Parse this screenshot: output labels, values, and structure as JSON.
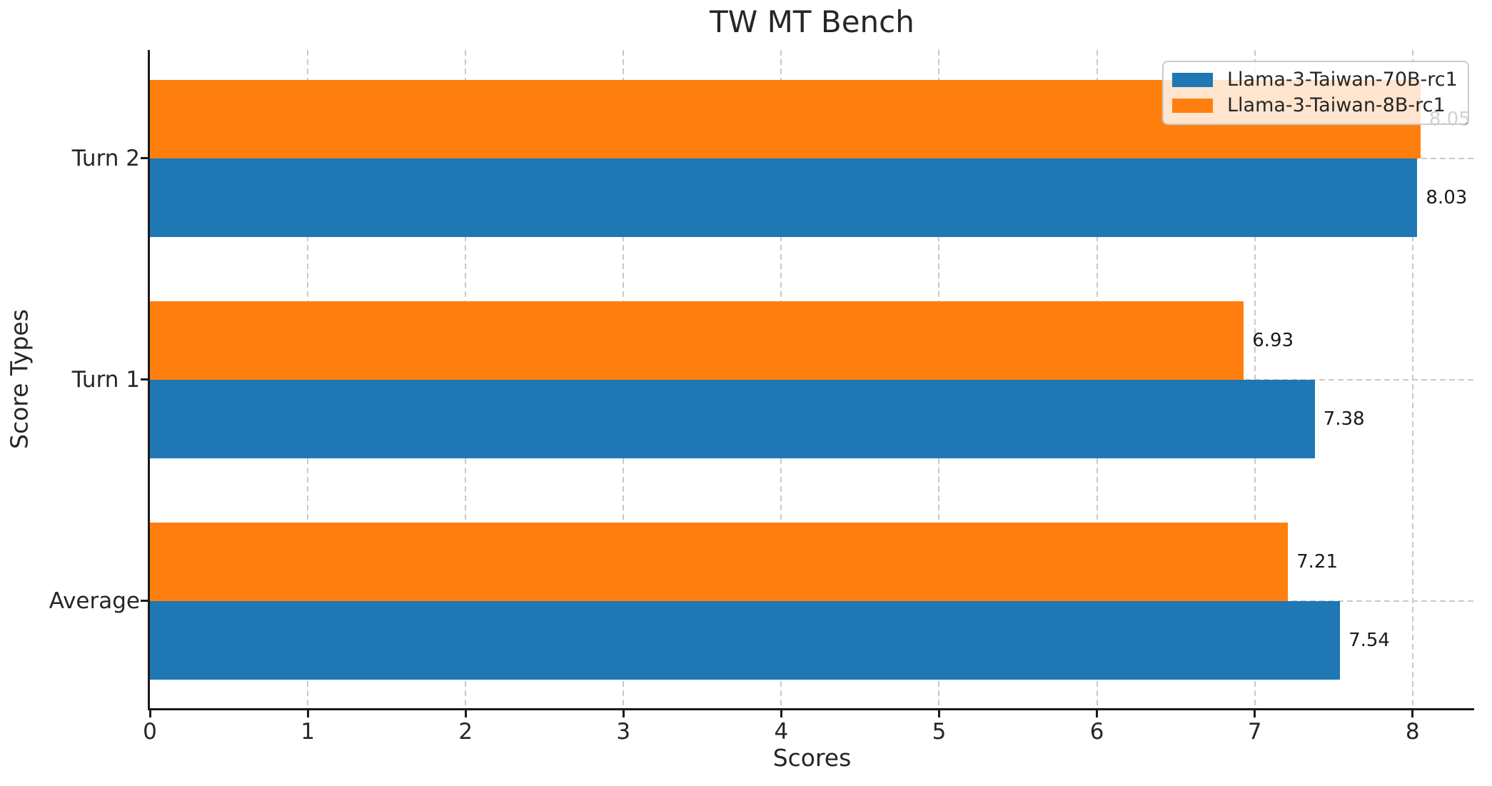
{
  "chart_data": {
    "type": "bar",
    "orientation": "horizontal",
    "title": "TW MT Bench",
    "xlabel": "Scores",
    "ylabel": "Score Types",
    "categories": [
      "Turn 2",
      "Turn 1",
      "Average"
    ],
    "series": [
      {
        "name": "Llama-3-Taiwan-70B-rc1",
        "color": "#1f77b4",
        "values": [
          8.03,
          7.38,
          7.54
        ],
        "value_labels": [
          "8.03",
          "7.38",
          "7.54"
        ]
      },
      {
        "name": "Llama-3-Taiwan-8B-rc1",
        "color": "#ff7f0e",
        "values": [
          8.05,
          6.93,
          7.21
        ],
        "value_labels": [
          "8.05",
          "6.93",
          "7.21"
        ]
      }
    ],
    "x_ticks": [
      "0",
      "1",
      "2",
      "3",
      "4",
      "5",
      "6",
      "7",
      "8"
    ],
    "xlim": [
      0,
      8.39
    ],
    "grid": {
      "style": "dashed",
      "color": "#c9c9c9",
      "axis": "both"
    },
    "legend": {
      "position": "upper right"
    },
    "spine_color": "#1a1a1a",
    "background": "#ffffff"
  }
}
